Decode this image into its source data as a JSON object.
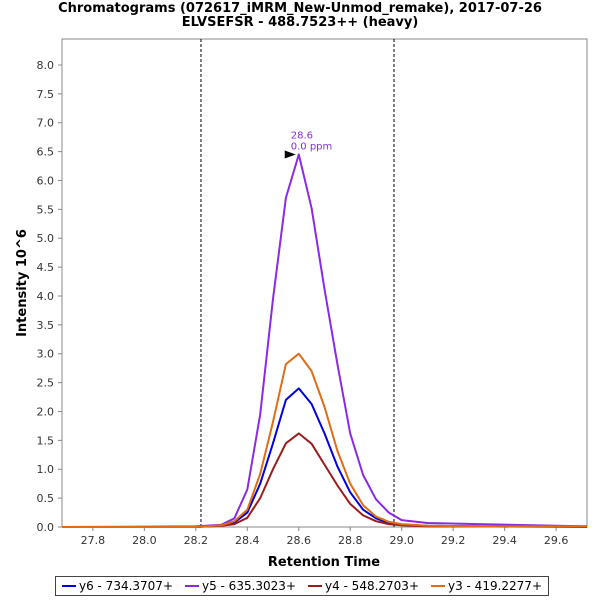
{
  "chart_data": {
    "type": "line",
    "title": "Chromatograms (072617_iMRM_New-Unmod_remake), 2017-07-26",
    "subtitle": "ELVSEFSR - 488.7523++ (heavy)",
    "xlabel": "Retention Time",
    "ylabel": "Intensity 10^6",
    "xlim": [
      27.68,
      29.72
    ],
    "ylim": [
      0,
      8.45
    ],
    "xticks": [
      "27.8",
      "28.0",
      "28.2",
      "28.4",
      "28.6",
      "28.8",
      "29.0",
      "29.2",
      "29.4",
      "29.6"
    ],
    "yticks": [
      "0.0",
      "0.5",
      "1.0",
      "1.5",
      "2.0",
      "2.5",
      "3.0",
      "3.5",
      "4.0",
      "4.5",
      "5.0",
      "5.5",
      "6.0",
      "6.5",
      "7.0",
      "7.5",
      "8.0"
    ],
    "grid": false,
    "legend_position": "bottom",
    "integration_bounds": [
      28.22,
      28.97
    ],
    "peak_annotation": {
      "x": 28.6,
      "y": 6.45,
      "line1": "28.6",
      "line2": "0.0 ppm",
      "color": "#8a2be2"
    },
    "x": [
      27.68,
      28.2,
      28.3,
      28.35,
      28.4,
      28.45,
      28.5,
      28.55,
      28.6,
      28.65,
      28.7,
      28.75,
      28.8,
      28.85,
      28.9,
      28.95,
      29.0,
      29.1,
      29.3,
      29.72
    ],
    "series": [
      {
        "name": "y6 - 734.3707+",
        "color": "#0000e0",
        "values": [
          0.0,
          0.0,
          0.03,
          0.08,
          0.25,
          0.75,
          1.45,
          2.2,
          2.4,
          2.13,
          1.62,
          1.05,
          0.6,
          0.3,
          0.15,
          0.07,
          0.04,
          0.02,
          0.01,
          0.01
        ]
      },
      {
        "name": "y5 - 635.3023+",
        "color": "#8a2be2",
        "values": [
          0.0,
          0.01,
          0.04,
          0.15,
          0.65,
          1.95,
          3.95,
          5.7,
          6.45,
          5.52,
          4.12,
          2.82,
          1.62,
          0.9,
          0.48,
          0.25,
          0.12,
          0.07,
          0.05,
          0.01
        ]
      },
      {
        "name": "y4 - 548.2703+",
        "color": "#9b1c1c",
        "values": [
          0.0,
          0.0,
          0.02,
          0.05,
          0.16,
          0.5,
          1.0,
          1.45,
          1.62,
          1.44,
          1.08,
          0.72,
          0.4,
          0.2,
          0.1,
          0.05,
          0.03,
          0.01,
          0.01,
          0.0
        ]
      },
      {
        "name": "y3 - 419.2277+",
        "color": "#e06c14",
        "values": [
          0.0,
          0.0,
          0.03,
          0.1,
          0.3,
          0.92,
          1.82,
          2.82,
          3.0,
          2.7,
          2.08,
          1.32,
          0.75,
          0.38,
          0.18,
          0.09,
          0.05,
          0.02,
          0.01,
          0.01
        ]
      }
    ]
  }
}
